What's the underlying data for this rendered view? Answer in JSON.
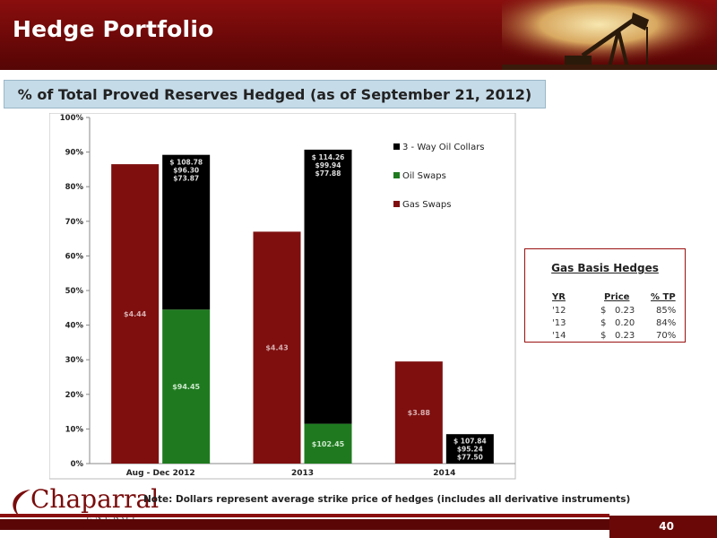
{
  "header": {
    "title": "Hedge Portfolio"
  },
  "subtitle": "% of Total Proved Reserves Hedged (as of September 21, 2012)",
  "chart_data": {
    "type": "bar",
    "stacked": true,
    "categories": [
      "Aug - Dec 2012",
      "2013",
      "2014"
    ],
    "y_ticks": [
      "0%",
      "10%",
      "20%",
      "30%",
      "40%",
      "50%",
      "60%",
      "70%",
      "80%",
      "90%",
      "100%"
    ],
    "ylim": [
      0,
      100
    ],
    "grid": false,
    "legend_position": "top-right",
    "gas": {
      "name": "Gas Swaps",
      "values": [
        86.5,
        67,
        29.5
      ],
      "labels": [
        "$4.44",
        "$4.43",
        "$3.88"
      ],
      "color": "#7f0f0f"
    },
    "oil": [
      {
        "name": "Oil Swaps",
        "values": [
          44.5,
          11.5,
          0
        ],
        "labels": [
          "$94.45",
          "$102.45",
          ""
        ],
        "color": "#1f7a1f"
      },
      {
        "name": "3 - Way Oil Collars",
        "values": [
          44.7,
          79.2,
          8.5
        ],
        "labels": [
          [
            "$ 108.78",
            "$96.30",
            "$73.87"
          ],
          [
            "$ 114.26",
            "$99.94",
            "$77.88"
          ],
          [
            "$ 107.84",
            "$95.24",
            "$77.50"
          ]
        ],
        "color": "#000000"
      }
    ],
    "legend": [
      "3 - Way Oil Collars",
      "Oil Swaps",
      "Gas Swaps"
    ]
  },
  "basis_table": {
    "title": "Gas Basis Hedges",
    "headers": [
      "YR",
      "Price",
      "% TP"
    ],
    "rows": [
      {
        "yr": "'12",
        "cur": "$",
        "price": "0.23",
        "tp": "85%"
      },
      {
        "yr": "'13",
        "cur": "$",
        "price": "0.20",
        "tp": "84%"
      },
      {
        "yr": "'14",
        "cur": "$",
        "price": "0.23",
        "tp": "70%"
      }
    ]
  },
  "logo": {
    "name": "Chaparral",
    "sub": "ENERGY"
  },
  "note": "Note: Dollars represent average strike price of hedges (includes all derivative instruments)",
  "page_number": "40",
  "colors": {
    "brand": "#7a0c0c",
    "subtitle_bg": "#c5dbe8"
  }
}
